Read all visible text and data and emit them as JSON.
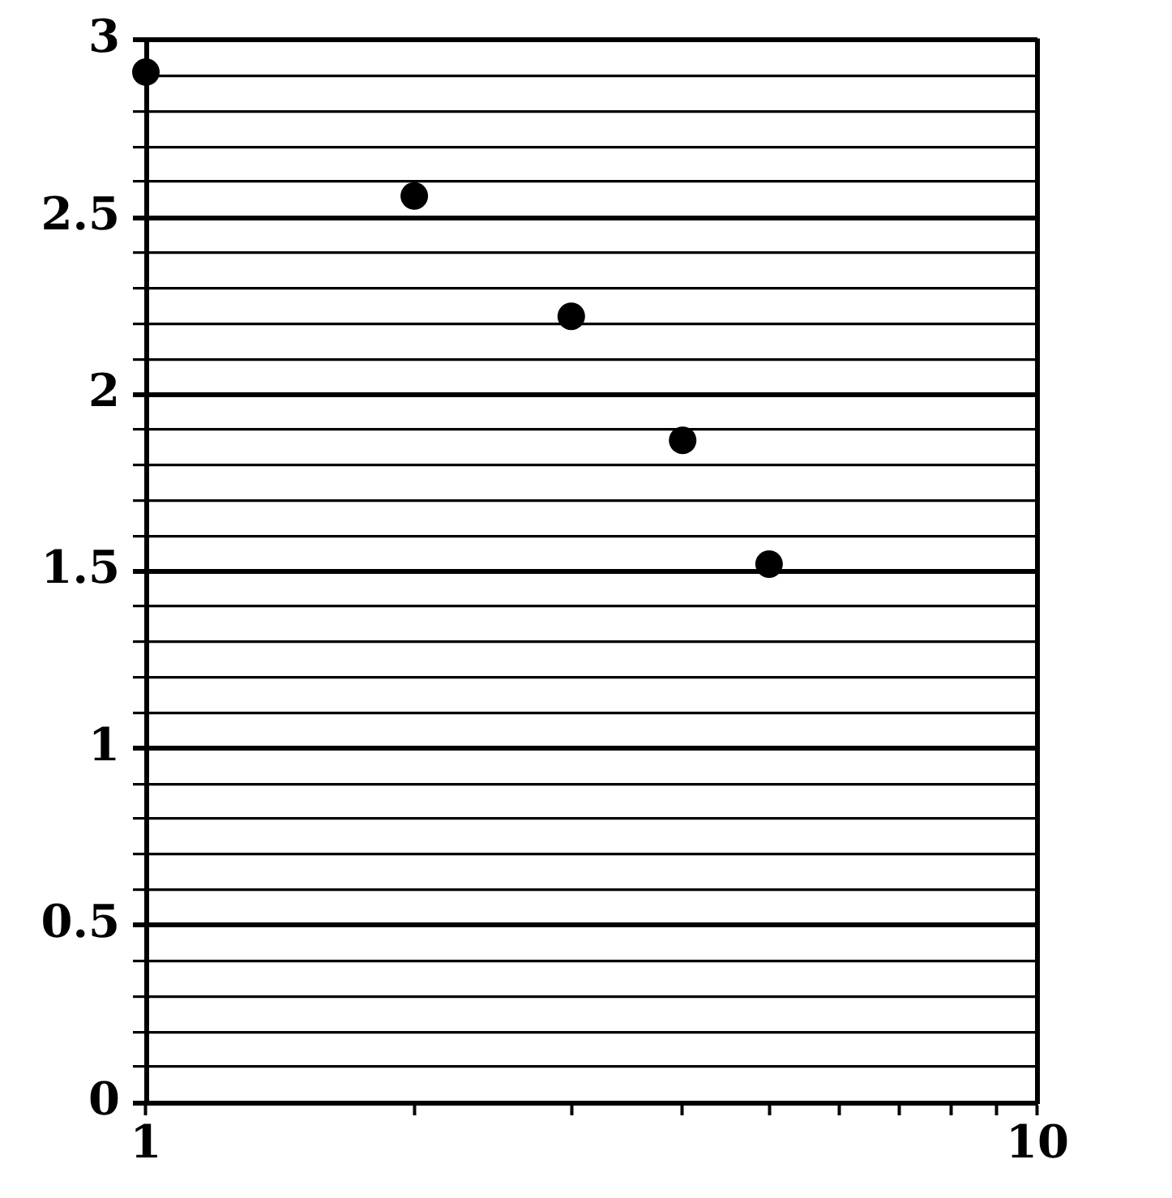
{
  "chart_data": {
    "type": "scatter",
    "x": [
      1,
      2,
      3,
      4,
      5
    ],
    "values": [
      2.91,
      2.56,
      2.22,
      1.87,
      1.52
    ],
    "color": "#000000",
    "log": "x",
    "marker": "circle",
    "grid": "y",
    "xlim": [
      1,
      10
    ],
    "xticks": [
      1,
      {
        "value": 2,
        "label": null
      },
      {
        "value": 3,
        "label": null
      },
      {
        "value": 4,
        "label": null
      },
      {
        "value": 5,
        "label": null
      },
      {
        "value": 6,
        "label": null
      },
      {
        "value": 7,
        "label": null
      },
      {
        "value": 8,
        "label": null
      },
      {
        "value": 9,
        "label": null
      },
      10
    ],
    "ylim": [
      0,
      3
    ],
    "yticks": [
      0,
      {
        "value": 0.1,
        "label": null
      },
      {
        "value": 0.2,
        "label": null
      },
      {
        "value": 0.3,
        "label": null
      },
      {
        "value": 0.4,
        "label": null
      },
      0.5,
      {
        "value": 0.6,
        "label": null
      },
      {
        "value": 0.7,
        "label": null
      },
      {
        "value": 0.8,
        "label": null
      },
      {
        "value": 0.9,
        "label": null
      },
      1,
      {
        "value": 1.1,
        "label": null
      },
      {
        "value": 1.2,
        "label": null
      },
      {
        "value": 1.3,
        "label": null
      },
      {
        "value": 1.4,
        "label": null
      },
      1.5,
      {
        "value": 1.6,
        "label": null
      },
      {
        "value": 1.7,
        "label": null
      },
      {
        "value": 1.8,
        "label": null
      },
      {
        "value": 1.9,
        "label": null
      },
      2,
      {
        "value": 2.1,
        "label": null
      },
      {
        "value": 2.2,
        "label": null
      },
      {
        "value": 2.3,
        "label": null
      },
      {
        "value": 2.4,
        "label": null
      },
      2.5,
      {
        "value": 2.6,
        "label": null
      },
      {
        "value": 2.7,
        "label": null
      },
      {
        "value": 2.8,
        "label": null
      },
      {
        "value": 2.9,
        "label": null
      },
      3
    ]
  }
}
